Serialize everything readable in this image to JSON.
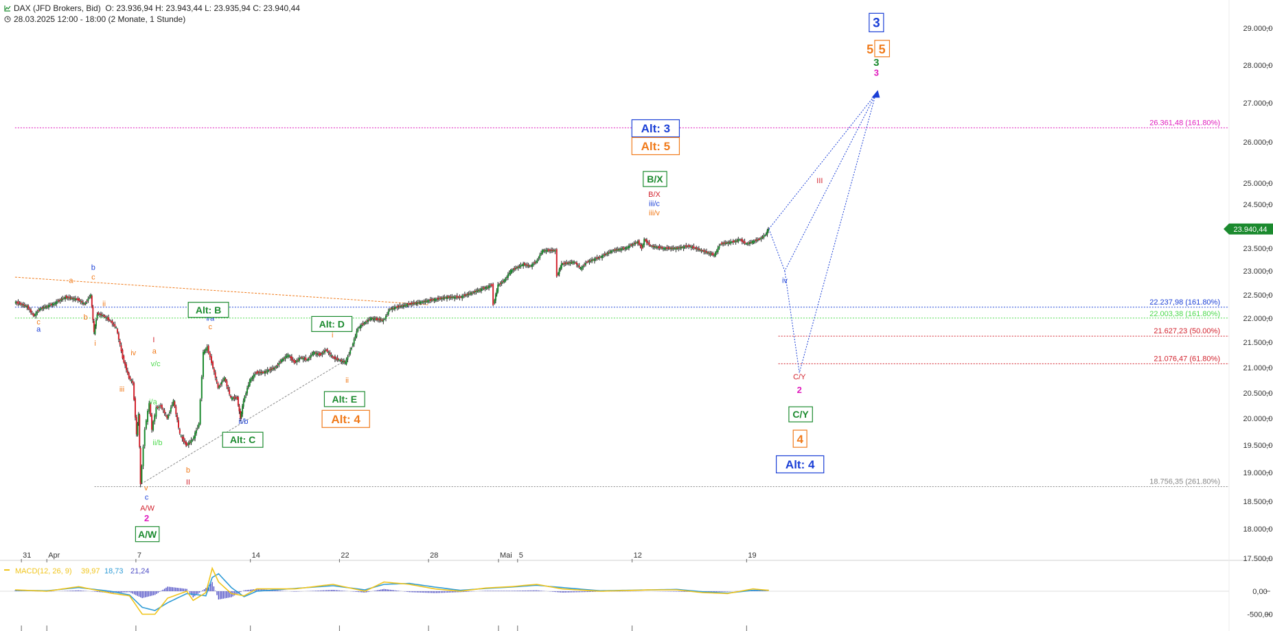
{
  "header": {
    "symbol": "DAX (JFD Brokers, Bid)",
    "ohlc": "O: 23.936,94  H: 23.943,44  L: 23.935,94  C: 23.940,44",
    "period": "28.03.2025 12:00 - 18:00  (2 Monate, 1 Stunde)"
  },
  "colors": {
    "up_candle": "#1b8a2e",
    "down_candle": "#d2222d",
    "green": "#1b8a2e",
    "orange": "#f07a1a",
    "blue": "#1a3fd6",
    "red": "#d2222d",
    "magenta": "#e01bbd",
    "lightgreen": "#4cd94c",
    "grey": "#888888",
    "macd": "#f0c419",
    "signal": "#2e9bd6",
    "histogram": "#4b4bc4"
  },
  "chart_data": {
    "type": "candlestick",
    "price_axis_labels": [
      "29.000,00",
      "28.000,00",
      "27.000,00",
      "26.000,00",
      "25.000,00",
      "24.500,00",
      "23.500,00",
      "23.000,00",
      "22.500,00",
      "22.000,00",
      "21.500,00",
      "21.000,00",
      "20.500,00",
      "20.000,00",
      "19.500,00",
      "19.000,00",
      "18.500,00",
      "18.000,00",
      "17.500,00"
    ],
    "price_axis_values": [
      29000,
      28000,
      27000,
      26000,
      25000,
      24500,
      23500,
      23000,
      22500,
      22000,
      21500,
      21000,
      20500,
      20000,
      19500,
      19000,
      18500,
      18000,
      17500
    ],
    "last_price_label": "23.940,44",
    "x_labels": [
      {
        "label": "31",
        "idx": 1
      },
      {
        "label": "Apr",
        "idx": 5
      },
      {
        "label": "7",
        "idx": 19
      },
      {
        "label": "14",
        "idx": 37
      },
      {
        "label": "22",
        "idx": 51
      },
      {
        "label": "28",
        "idx": 65
      },
      {
        "label": "Mai",
        "idx": 76
      },
      {
        "label": "5",
        "idx": 79
      },
      {
        "label": "12",
        "idx": 97
      },
      {
        "label": "19",
        "idx": 115
      }
    ],
    "price_series": [
      [
        0,
        22350
      ],
      [
        2,
        22250
      ],
      [
        3,
        22050
      ],
      [
        4,
        22200
      ],
      [
        6,
        22300
      ],
      [
        8,
        22450
      ],
      [
        10,
        22400
      ],
      [
        11,
        22300
      ],
      [
        12,
        22500
      ],
      [
        12.5,
        21700
      ],
      [
        13,
        22100
      ],
      [
        14,
        22050
      ],
      [
        15,
        21950
      ],
      [
        16,
        21800
      ],
      [
        17,
        21200
      ],
      [
        18,
        20800
      ],
      [
        18.6,
        20700
      ],
      [
        19.2,
        19700
      ],
      [
        19.5,
        20100
      ],
      [
        19.8,
        18800
      ],
      [
        20.5,
        19800
      ],
      [
        21.2,
        20300
      ],
      [
        21.6,
        19800
      ],
      [
        22.3,
        20200
      ],
      [
        23,
        20250
      ],
      [
        24,
        20000
      ],
      [
        25,
        20350
      ],
      [
        26,
        19700
      ],
      [
        27,
        19500
      ],
      [
        28,
        19600
      ],
      [
        29,
        19900
      ],
      [
        29.7,
        21300
      ],
      [
        30.3,
        21400
      ],
      [
        31,
        21100
      ],
      [
        32,
        20600
      ],
      [
        33,
        20800
      ],
      [
        34,
        20400
      ],
      [
        35,
        20400
      ],
      [
        35.5,
        20000
      ],
      [
        36,
        20350
      ],
      [
        37,
        20750
      ],
      [
        38,
        20900
      ],
      [
        39,
        20900
      ],
      [
        41,
        21000
      ],
      [
        42,
        21150
      ],
      [
        43,
        21250
      ],
      [
        44,
        21100
      ],
      [
        45,
        21200
      ],
      [
        46,
        21150
      ],
      [
        47,
        21300
      ],
      [
        48,
        21250
      ],
      [
        49,
        21350
      ],
      [
        50,
        21200
      ],
      [
        51,
        21150
      ],
      [
        52,
        21100
      ],
      [
        53,
        21400
      ],
      [
        54,
        21800
      ],
      [
        55,
        21900
      ],
      [
        56,
        22000
      ],
      [
        58,
        21950
      ],
      [
        59,
        22200
      ],
      [
        62,
        22300
      ],
      [
        64,
        22350
      ],
      [
        66,
        22400
      ],
      [
        68,
        22450
      ],
      [
        70,
        22450
      ],
      [
        72,
        22550
      ],
      [
        74,
        22650
      ],
      [
        75,
        22700
      ],
      [
        75.3,
        22300
      ],
      [
        76,
        22700
      ],
      [
        77,
        22800
      ],
      [
        78,
        23000
      ],
      [
        80,
        23150
      ],
      [
        81,
        23100
      ],
      [
        82,
        23200
      ],
      [
        83,
        23450
      ],
      [
        85,
        23450
      ],
      [
        85.3,
        22900
      ],
      [
        86,
        23150
      ],
      [
        88,
        23200
      ],
      [
        89,
        23050
      ],
      [
        90,
        23200
      ],
      [
        92,
        23300
      ],
      [
        94,
        23450
      ],
      [
        96,
        23500
      ],
      [
        98,
        23650
      ],
      [
        98.6,
        23500
      ],
      [
        99,
        23700
      ],
      [
        100,
        23550
      ],
      [
        102,
        23500
      ],
      [
        104,
        23500
      ],
      [
        106,
        23550
      ],
      [
        108,
        23450
      ],
      [
        110,
        23350
      ],
      [
        111,
        23600
      ],
      [
        113,
        23650
      ],
      [
        114,
        23700
      ],
      [
        115,
        23600
      ],
      [
        116,
        23650
      ],
      [
        117,
        23700
      ],
      [
        118,
        23800
      ],
      [
        118.5,
        23940
      ]
    ],
    "wave_labels": [
      {
        "text": "a",
        "color": "orange",
        "idx": 8.8,
        "p": 22750
      },
      {
        "text": "b",
        "color": "blue",
        "idx": 12.3,
        "p": 23020
      },
      {
        "text": "c",
        "color": "orange",
        "idx": 12.3,
        "p": 22820
      },
      {
        "text": "b",
        "color": "orange",
        "idx": 11.1,
        "p": 21970
      },
      {
        "text": "c",
        "color": "orange",
        "idx": 3.7,
        "p": 21870
      },
      {
        "text": "a",
        "color": "blue",
        "idx": 3.7,
        "p": 21720
      },
      {
        "text": "ii",
        "color": "orange",
        "idx": 14,
        "p": 22260
      },
      {
        "text": "i",
        "color": "orange",
        "idx": 12.6,
        "p": 21430
      },
      {
        "text": "iv",
        "color": "orange",
        "idx": 18.6,
        "p": 21240
      },
      {
        "text": "iii",
        "color": "orange",
        "idx": 16.8,
        "p": 20530
      },
      {
        "text": "I",
        "color": "red",
        "idx": 21.8,
        "p": 21500
      },
      {
        "text": "a",
        "color": "orange",
        "idx": 21.9,
        "p": 21280
      },
      {
        "text": "v/c",
        "color": "lightgreen",
        "idx": 22.1,
        "p": 21030
      },
      {
        "text": "i/a",
        "color": "lightgreen",
        "idx": 21.7,
        "p": 20280
      },
      {
        "text": "ii/b",
        "color": "lightgreen",
        "idx": 22.4,
        "p": 19500
      },
      {
        "text": "v",
        "color": "orange",
        "idx": 20.6,
        "p": 18690
      },
      {
        "text": "c",
        "color": "blue",
        "idx": 20.7,
        "p": 18530
      },
      {
        "text": "A/W",
        "color": "red",
        "idx": 20.8,
        "p": 18330
      },
      {
        "text": "2",
        "color": "magenta",
        "bold": true,
        "idx": 20.7,
        "p": 18140
      },
      {
        "text": "b",
        "color": "orange",
        "idx": 27.2,
        "p": 19000
      },
      {
        "text": "II",
        "color": "red",
        "idx": 27.2,
        "p": 18790
      },
      {
        "text": "i/a",
        "color": "blue",
        "idx": 30.7,
        "p": 21950
      },
      {
        "text": "c",
        "color": "orange",
        "idx": 30.7,
        "p": 21770
      },
      {
        "text": "ii/b",
        "color": "blue",
        "idx": 35.9,
        "p": 19900
      },
      {
        "text": "i",
        "color": "orange",
        "idx": 49.9,
        "p": 21600
      },
      {
        "text": "ii",
        "color": "orange",
        "idx": 52.2,
        "p": 20700
      },
      {
        "text": "B/X",
        "color": "red",
        "idx": 100.5,
        "p": 24680
      },
      {
        "text": "iii/c",
        "color": "blue",
        "idx": 100.5,
        "p": 24460
      },
      {
        "text": "iii/v",
        "color": "orange",
        "idx": 100.5,
        "p": 24250
      },
      {
        "text": "III",
        "color": "red",
        "idx": 126.5,
        "p": 25000
      },
      {
        "text": "iv",
        "color": "blue",
        "idx": 121,
        "p": 22750
      },
      {
        "text": "C/Y",
        "color": "red",
        "idx": 123.3,
        "p": 20770
      },
      {
        "text": "2",
        "color": "magenta",
        "bold": true,
        "idx": 123.3,
        "p": 20500
      }
    ],
    "boxed_labels": [
      {
        "text": "A/W",
        "color": "green",
        "idx": 20.8,
        "p": 17910,
        "size": 14
      },
      {
        "text": "Alt: B",
        "color": "green",
        "idx": 30.4,
        "p": 22180,
        "size": 14
      },
      {
        "text": "Alt: C",
        "color": "green",
        "idx": 35.8,
        "p": 19600,
        "size": 14
      },
      {
        "text": "Alt: D",
        "color": "green",
        "idx": 49.8,
        "p": 21880,
        "size": 14
      },
      {
        "text": "Alt: E",
        "color": "green",
        "idx": 51.8,
        "p": 20380,
        "size": 14
      },
      {
        "text": "Alt: 4",
        "color": "orange",
        "idx": 52,
        "p": 19990,
        "size": 17
      },
      {
        "text": "Alt: 3",
        "color": "blue",
        "idx": 100.7,
        "p": 26350,
        "size": 17
      },
      {
        "text": "Alt: 5",
        "color": "orange",
        "idx": 100.7,
        "p": 25900,
        "size": 17
      },
      {
        "text": "B/X",
        "color": "green",
        "idx": 100.6,
        "p": 25100,
        "size": 14
      },
      {
        "text": "C/Y",
        "color": "green",
        "idx": 123.5,
        "p": 20080,
        "size": 14
      },
      {
        "text": "4",
        "color": "orange",
        "idx": 123.4,
        "p": 19620,
        "size": 17
      },
      {
        "text": "Alt: 4",
        "color": "blue",
        "idx": 123.4,
        "p": 19150,
        "size": 17
      },
      {
        "text": "3",
        "color": "blue",
        "idx": 135.4,
        "p": 29150,
        "size": 19
      }
    ],
    "projection_labels": [
      {
        "text": "5",
        "color": "orange",
        "bold": true,
        "size": 18,
        "idx": 134.4,
        "p": 28430,
        "boxed": false
      },
      {
        "text": "5",
        "color": "orange",
        "bold": true,
        "size": 18,
        "idx": 136.3,
        "p": 28430,
        "boxed": true
      },
      {
        "text": "3",
        "color": "green",
        "bold": true,
        "size": 15,
        "idx": 135.4,
        "p": 28080,
        "boxed": false
      },
      {
        "text": "3",
        "color": "magenta",
        "bold": true,
        "size": 13,
        "idx": 135.4,
        "p": 27800,
        "boxed": false
      }
    ],
    "target_marker": {
      "idx": 135.3,
      "p": 27230,
      "color": "blue"
    },
    "fib_levels": [
      {
        "price": 26361.48,
        "label": "26.361,48 (161.80%)",
        "color": "magenta",
        "from_idx": 0
      },
      {
        "price": 22237.98,
        "label": "22.237,98 (161.80%)",
        "color": "blue",
        "from_idx": 0
      },
      {
        "price": 22003.38,
        "label": "22.003,38 (161.80%)",
        "color": "lightgreen",
        "from_idx": 0
      },
      {
        "price": 21627.23,
        "label": "21.627,23 (50.00%)",
        "color": "red",
        "from_idx": 120
      },
      {
        "price": 21076.47,
        "label": "21.076,47 (61.80%)",
        "color": "red",
        "from_idx": 120
      },
      {
        "price": 18756.35,
        "label": "18.756,35 (261.80%)",
        "color": "grey",
        "from_idx": 12.5
      }
    ],
    "trendlines": [
      {
        "color": "orange",
        "points": [
          [
            0,
            22870
          ],
          [
            65,
            22290
          ]
        ]
      },
      {
        "color": "grey",
        "points": [
          [
            19.8,
            18800
          ],
          [
            52,
            21150
          ]
        ]
      }
    ],
    "projections": [
      {
        "color": "blue",
        "points": [
          [
            118.5,
            23940
          ],
          [
            121,
            23000
          ],
          [
            135.3,
            27230
          ]
        ]
      },
      {
        "color": "blue",
        "points": [
          [
            118.5,
            23940
          ],
          [
            135.3,
            27230
          ]
        ]
      },
      {
        "color": "blue",
        "points": [
          [
            121,
            23000
          ],
          [
            123.3,
            20900
          ],
          [
            135.3,
            27230
          ]
        ]
      }
    ],
    "macd": {
      "label": "MACD(12, 26, 9)",
      "values_text": [
        "39,97",
        "18,73",
        "21,24"
      ],
      "axis_labels": [
        "0,00",
        "-500,00"
      ],
      "axis_values": [
        0,
        -500
      ],
      "macd_series": [
        [
          0,
          30
        ],
        [
          5,
          0
        ],
        [
          10,
          100
        ],
        [
          15,
          -40
        ],
        [
          18,
          -100
        ],
        [
          20,
          -500
        ],
        [
          22,
          -500
        ],
        [
          24,
          -150
        ],
        [
          27,
          0
        ],
        [
          28,
          -200
        ],
        [
          30,
          -30
        ],
        [
          31,
          500
        ],
        [
          32,
          200
        ],
        [
          34,
          -50
        ],
        [
          36,
          -100
        ],
        [
          38,
          50
        ],
        [
          44,
          50
        ],
        [
          50,
          150
        ],
        [
          55,
          0
        ],
        [
          58,
          200
        ],
        [
          62,
          150
        ],
        [
          66,
          50
        ],
        [
          70,
          0
        ],
        [
          74,
          70
        ],
        [
          78,
          100
        ],
        [
          82,
          150
        ],
        [
          86,
          50
        ],
        [
          92,
          0
        ],
        [
          100,
          30
        ],
        [
          104,
          30
        ],
        [
          108,
          -30
        ],
        [
          112,
          -50
        ],
        [
          116,
          50
        ],
        [
          118.5,
          20
        ]
      ],
      "signal_series": [
        [
          0,
          20
        ],
        [
          5,
          10
        ],
        [
          10,
          80
        ],
        [
          15,
          0
        ],
        [
          18,
          -80
        ],
        [
          20,
          -350
        ],
        [
          22,
          -420
        ],
        [
          24,
          -250
        ],
        [
          27,
          -50
        ],
        [
          30,
          -100
        ],
        [
          31,
          300
        ],
        [
          32,
          380
        ],
        [
          34,
          80
        ],
        [
          36,
          -120
        ],
        [
          38,
          0
        ],
        [
          44,
          60
        ],
        [
          50,
          120
        ],
        [
          55,
          30
        ],
        [
          58,
          150
        ],
        [
          62,
          170
        ],
        [
          66,
          90
        ],
        [
          70,
          20
        ],
        [
          74,
          60
        ],
        [
          78,
          90
        ],
        [
          82,
          130
        ],
        [
          86,
          80
        ],
        [
          92,
          10
        ],
        [
          100,
          30
        ],
        [
          104,
          40
        ],
        [
          108,
          -10
        ],
        [
          112,
          -40
        ],
        [
          116,
          20
        ],
        [
          118.5,
          20
        ]
      ]
    }
  }
}
